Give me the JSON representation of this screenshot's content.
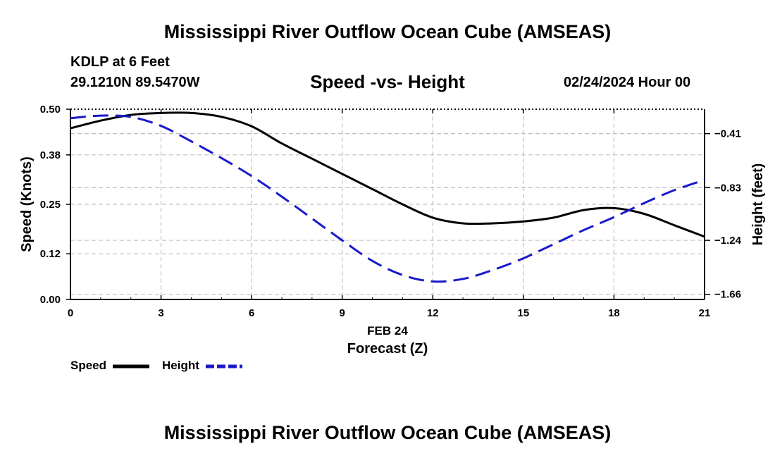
{
  "header": {
    "title": "Mississippi River Outflow Ocean Cube (AMSEAS)",
    "station": "KDLP at 6 Feet",
    "coordinates": "29.1210N  89.5470W",
    "subtitle": "Speed -vs- Height",
    "datetime": "02/24/2024 Hour 00"
  },
  "footer": {
    "title": "Mississippi River Outflow Ocean Cube (AMSEAS)"
  },
  "legend": {
    "speed_label": "Speed",
    "height_label": "Height"
  },
  "chart_data": {
    "type": "line",
    "title": "Speed -vs- Height",
    "xlabel": "Forecast (Z)",
    "xlabel_date": "FEB 24",
    "ylabel": "Speed (Knots)",
    "y2label": "Height (feet)",
    "xlim": [
      0,
      21
    ],
    "ylim": [
      0,
      0.5
    ],
    "y2lim": [
      -1.7,
      -0.22
    ],
    "x_ticks": [
      0,
      3,
      6,
      9,
      12,
      15,
      18,
      21
    ],
    "x_tick_labels": [
      "0",
      "3",
      "6",
      "9",
      "12",
      "15",
      "18",
      "21"
    ],
    "y_ticks": [
      0.0,
      0.12,
      0.25,
      0.38,
      0.5
    ],
    "y_tick_labels": [
      "0.00",
      "0.12",
      "0.25",
      "0.38",
      "0.50"
    ],
    "y2_ticks": [
      -0.41,
      -0.83,
      -1.24,
      -1.66
    ],
    "y2_tick_labels": [
      "-0.41",
      "-0.83",
      "-1.24",
      "-1.66"
    ],
    "grid": true,
    "legend_position": "bottom-left",
    "series": [
      {
        "name": "Speed",
        "axis": "left",
        "color": "#000000",
        "style": "solid",
        "x": [
          0,
          1,
          2,
          3,
          4,
          5,
          6,
          7,
          8,
          9,
          10,
          11,
          12,
          13,
          14,
          15,
          16,
          17,
          18,
          19,
          20,
          21
        ],
        "values": [
          0.45,
          0.47,
          0.485,
          0.49,
          0.49,
          0.48,
          0.455,
          0.41,
          0.37,
          0.33,
          0.29,
          0.25,
          0.215,
          0.2,
          0.2,
          0.205,
          0.215,
          0.235,
          0.24,
          0.225,
          0.195,
          0.165
        ]
      },
      {
        "name": "Height",
        "axis": "right",
        "color": "#1a1acc",
        "style": "dashed",
        "x": [
          0,
          1,
          2,
          3,
          4,
          5,
          6,
          7,
          8,
          9,
          10,
          11,
          12,
          13,
          14,
          15,
          16,
          17,
          18,
          19,
          20,
          21
        ],
        "values": [
          -0.29,
          -0.27,
          -0.28,
          -0.35,
          -0.47,
          -0.6,
          -0.74,
          -0.9,
          -1.07,
          -1.24,
          -1.4,
          -1.51,
          -1.56,
          -1.54,
          -1.47,
          -1.38,
          -1.27,
          -1.16,
          -1.06,
          -0.95,
          -0.85,
          -0.77
        ]
      }
    ]
  }
}
